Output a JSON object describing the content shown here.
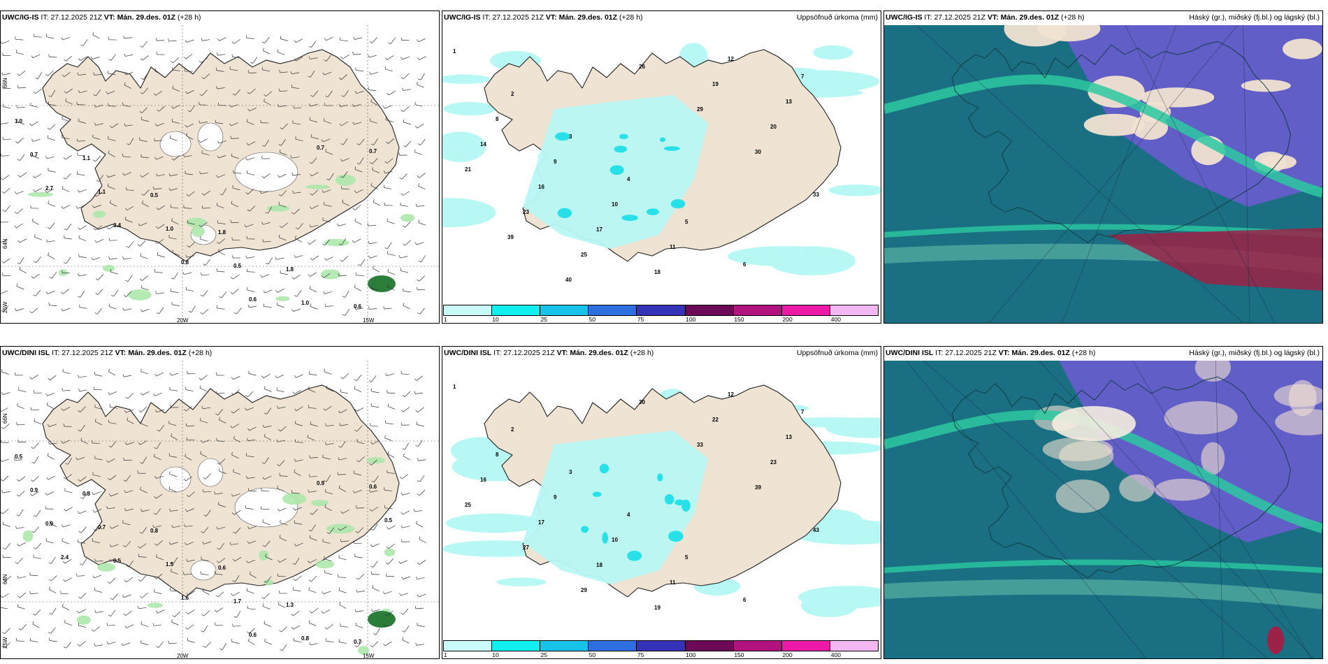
{
  "colors": {
    "land": "#efe3d3",
    "precip_light": "#b7f7f4",
    "precip_cyan": "#28e0e8",
    "precip_teal": "#2fa6b7",
    "cloud_high": "#1b6f83",
    "cloud_mid": "#6a5ccf",
    "cloud_low": "#b7f0d7",
    "cloud_band": "#2bc9a0",
    "cloud_red": "#9c2247"
  },
  "panels": [
    {
      "model": "UWC/IG-IS",
      "it_label": "IT:",
      "it": "27.12.2025 21Z",
      "vt_label": "VT:",
      "vt": "Mán. 29.des. 01Z",
      "lead": "(+28 h)",
      "right_title": "",
      "type": "wind",
      "lons": [
        "20W",
        "15W"
      ],
      "lats": [
        "66N",
        "64N",
        "25W"
      ]
    },
    {
      "model": "UWC/IG-IS",
      "it_label": "IT:",
      "it": "27.12.2025 21Z",
      "vt_label": "VT:",
      "vt": "Mán. 29.des. 01Z",
      "lead": "(+28 h)",
      "right_title": "Uppsöfnuð úrkoma (mm)",
      "type": "precip",
      "lons": [],
      "lats": []
    },
    {
      "model": "UWC/IG-IS",
      "it_label": "IT:",
      "it": "27.12.2025 21Z",
      "vt_label": "VT:",
      "vt": "Mán. 29.des. 01Z",
      "lead": "(+28 h)",
      "right_title": "Háský (gr.), miðský (fj.bl.) og lágský (bl.)",
      "type": "cloud",
      "lons": [],
      "lats": []
    },
    {
      "model": "UWC/DINI ISL",
      "it_label": "IT:",
      "it": "27.12.2025 21Z",
      "vt_label": "VT:",
      "vt": "Mán. 29.des. 01Z",
      "lead": "(+28 h)",
      "right_title": "",
      "type": "wind",
      "lons": [
        "20W",
        "15W"
      ],
      "lats": [
        "66N",
        "64N",
        "25W"
      ]
    },
    {
      "model": "UWC/DINI ISL",
      "it_label": "IT:",
      "it": "27.12.2025 21Z",
      "vt_label": "VT:",
      "vt": "Mán. 29.des. 01Z",
      "lead": "(+28 h)",
      "right_title": "Uppsöfnuð úrkoma (mm)",
      "type": "precip",
      "lons": [],
      "lats": []
    },
    {
      "model": "UWC/DINI ISL",
      "it_label": "IT:",
      "it": "27.12.2025 21Z",
      "vt_label": "VT:",
      "vt": "Mán. 29.des. 01Z",
      "lead": "(+28 h)",
      "right_title": "Háský (gr.), miðský (fj.bl.) og lágský (bl.)",
      "type": "cloud",
      "lons": [],
      "lats": []
    }
  ],
  "precip_legend": {
    "colors": [
      "#c9fbf9",
      "#10f0ef",
      "#18c3e9",
      "#2e6fe0",
      "#3433b8",
      "#6c0a57",
      "#b3137f",
      "#ec1aa7",
      "#f3b8f1"
    ],
    "ticks": [
      "1",
      "10",
      "25",
      "50",
      "75",
      "100",
      "150",
      "200",
      "400"
    ]
  },
  "wind_values": {
    "top": [
      "1.0",
      "1.1",
      "0.5",
      "1.8",
      "1.8",
      "0.6",
      "0.7",
      "1.1",
      "1.0",
      "0.5",
      "1.0",
      "0.7",
      "2.7",
      "3.4",
      "0.8",
      "0.6",
      "0.7"
    ],
    "bottom": [
      "0.5",
      "0.8",
      "0.8",
      "0.6",
      "1.3",
      "0.7",
      "0.9",
      "0.7",
      "1.5",
      "1.7",
      "0.8",
      "0.6",
      "0.9",
      "0.5",
      "1.6",
      "0.6",
      "0.9",
      "0.5",
      "2.4"
    ]
  },
  "precip_values": {
    "top": [
      "1",
      "2",
      "3",
      "4",
      "5",
      "6",
      "7",
      "8",
      "9",
      "10",
      "11",
      "12",
      "13",
      "14",
      "16",
      "17",
      "18",
      "19",
      "20",
      "21",
      "23",
      "25",
      "26",
      "29",
      "30",
      "33",
      "39",
      "40"
    ],
    "bottom": [
      "1",
      "2",
      "3",
      "4",
      "5",
      "6",
      "7",
      "8",
      "9",
      "10",
      "11",
      "12",
      "13",
      "16",
      "17",
      "18",
      "19",
      "22",
      "23",
      "25",
      "27",
      "29",
      "30",
      "33",
      "39",
      "43"
    ]
  }
}
